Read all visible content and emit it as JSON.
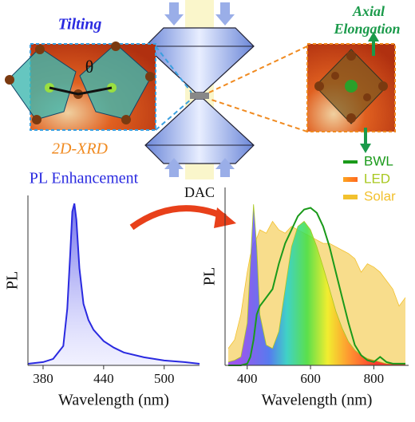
{
  "diagram": {
    "tilting": "Tilting",
    "theta": "θ",
    "xrd": "2D-XRD",
    "axial": "Axial",
    "elongation": "Elongation",
    "dac": "DAC"
  },
  "chart_data": [
    {
      "type": "area",
      "title": "PL Enhancement",
      "xlabel": "Wavelength (nm)",
      "ylabel": "PL",
      "color": "#2a2ae0",
      "x": [
        365,
        380,
        390,
        400,
        404,
        407,
        409,
        411,
        413,
        416,
        420,
        425,
        430,
        440,
        450,
        460,
        480,
        500,
        520,
        535
      ],
      "values": [
        0.01,
        0.02,
        0.04,
        0.12,
        0.35,
        0.7,
        0.95,
        1.0,
        0.9,
        0.6,
        0.38,
        0.28,
        0.22,
        0.15,
        0.11,
        0.08,
        0.05,
        0.03,
        0.02,
        0.01
      ],
      "xlim": [
        365,
        535
      ],
      "ylim": [
        0,
        1.05
      ],
      "xticks": [
        380,
        440,
        500
      ]
    },
    {
      "type": "area",
      "xlabel": "Wavelength (nm)",
      "ylabel": "PL",
      "legend": "top-right",
      "x": [
        340,
        360,
        380,
        400,
        410,
        420,
        430,
        440,
        460,
        480,
        500,
        520,
        540,
        560,
        580,
        600,
        620,
        640,
        660,
        680,
        700,
        720,
        740,
        760,
        780,
        800,
        820,
        840,
        860,
        880,
        900
      ],
      "series": [
        {
          "name": "BWL",
          "color": "#1a9a1a",
          "values": [
            0,
            0,
            0,
            0.01,
            0.05,
            0.15,
            0.3,
            0.35,
            0.4,
            0.45,
            0.6,
            0.72,
            0.8,
            0.88,
            0.92,
            0.93,
            0.9,
            0.82,
            0.7,
            0.55,
            0.4,
            0.25,
            0.12,
            0.06,
            0.03,
            0.02,
            0.05,
            0.02,
            0.01,
            0.01,
            0.01
          ]
        },
        {
          "name": "LED",
          "color": "#a8c820",
          "values": [
            0.02,
            0.03,
            0.05,
            0.25,
            0.6,
            0.95,
            0.7,
            0.3,
            0.12,
            0.1,
            0.2,
            0.45,
            0.7,
            0.82,
            0.85,
            0.8,
            0.7,
            0.58,
            0.45,
            0.32,
            0.22,
            0.14,
            0.09,
            0.06,
            0.04,
            0.03,
            0.02,
            0.01,
            0.01,
            0.01,
            0.01
          ]
        },
        {
          "name": "Solar",
          "color": "#f2c12e",
          "values": [
            0.1,
            0.15,
            0.3,
            0.55,
            0.65,
            0.72,
            0.75,
            0.8,
            0.78,
            0.85,
            0.8,
            0.78,
            0.82,
            0.8,
            0.78,
            0.76,
            0.74,
            0.72,
            0.72,
            0.7,
            0.68,
            0.66,
            0.63,
            0.55,
            0.6,
            0.58,
            0.55,
            0.5,
            0.45,
            0.35,
            0.4
          ]
        }
      ],
      "xlim": [
        330,
        910
      ],
      "ylim": [
        0,
        1.05
      ],
      "xticks": [
        400,
        600,
        800
      ]
    }
  ]
}
